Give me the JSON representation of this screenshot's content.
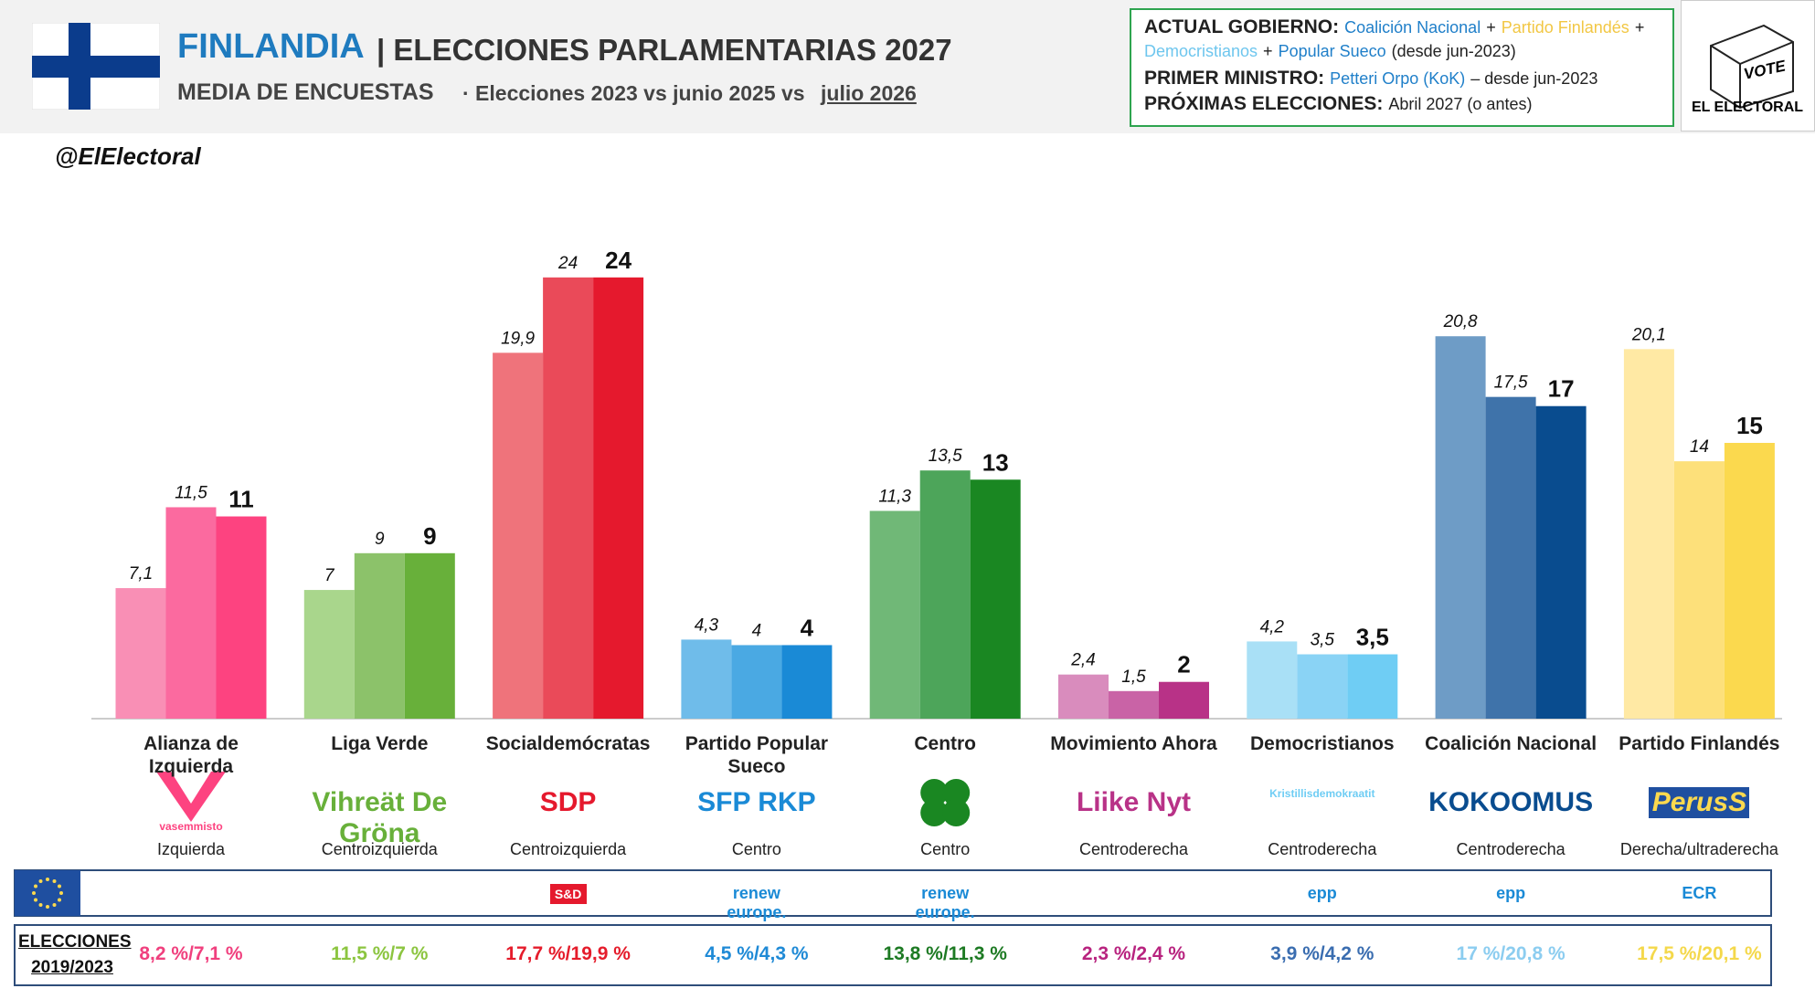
{
  "header": {
    "country": "FINLANDIA",
    "title": "| ELECCIONES PARLAMENTARIAS 2027",
    "subtitle": "MEDIA DE ENCUESTAS",
    "subtitle_detail": "· Elecciones 2023 vs junio 2025 vs",
    "subtitle_highlight": "julio 2026",
    "handle": "@ElElectoral"
  },
  "gov_box": {
    "lines": [
      [
        {
          "text": "ACTUAL GOBIERNO:",
          "bold": true
        },
        {
          "text": "Coalición Nacional",
          "color": "#1f7fc9"
        },
        {
          "text": "+"
        },
        {
          "text": "Partido Finlandés",
          "color": "#f2c744"
        },
        {
          "text": "+"
        }
      ],
      [
        {
          "text": "Democristianos",
          "color": "#6ec6ee"
        },
        {
          "text": "+"
        },
        {
          "text": "Popular Sueco",
          "color": "#1f7fc9"
        },
        {
          "text": "(desde jun-2023)"
        }
      ],
      [
        {
          "text": "PRIMER MINISTRO:",
          "bold": true
        },
        {
          "text": "Petteri Orpo (KoK)",
          "color": "#1f7fc9"
        },
        {
          "text": "– desde jun-2023"
        }
      ],
      [
        {
          "text": "PRÓXIMAS ELECCIONES:",
          "bold": true
        },
        {
          "text": "Abril 2027 (o antes)"
        }
      ]
    ]
  },
  "logo": {
    "vote": "VOTE",
    "brand": "EL ELECTORAL"
  },
  "chart_data": {
    "type": "bar",
    "categories": [
      "Alianza de Izquierda",
      "Liga Verde",
      "Socialdemócratas",
      "Partido Popular Sueco",
      "Centro",
      "Movimiento Ahora",
      "Democristianos",
      "Coalición Nacional",
      "Partido Finlandés"
    ],
    "ylim": [
      0,
      30
    ],
    "series": [
      {
        "values": [
          7.1,
          7,
          19.9,
          4.3,
          11.3,
          2.4,
          4.2,
          20.8,
          20.1
        ],
        "value_labels": [
          "7,1",
          "7",
          "19,9",
          "4,3",
          "11,3",
          "2,4",
          "4,2",
          "20,8",
          "20,1"
        ],
        "colors": [
          "#f98fb5",
          "#a9d68c",
          "#ef737b",
          "#6fbcea",
          "#70b877",
          "#d98cbd",
          "#a9e0f6",
          "#6e9cc6",
          "#ffe9a4"
        ]
      },
      {
        "values": [
          11.5,
          9,
          24,
          4,
          13.5,
          1.5,
          3.5,
          17.5,
          14
        ],
        "value_labels": [
          "11,5",
          "9",
          "24",
          "4",
          "13,5",
          "1,5",
          "3,5",
          "17,5",
          "14"
        ],
        "colors": [
          "#fb6a9f",
          "#8cc26a",
          "#ea4a59",
          "#4aa9e3",
          "#4da55a",
          "#c963a6",
          "#8ad3f5",
          "#3f73aa",
          "#fde07a"
        ]
      },
      {
        "values": [
          11,
          9,
          24,
          4,
          13,
          2,
          3.5,
          17,
          15
        ],
        "value_labels": [
          "11",
          "9",
          "24",
          "4",
          "13",
          "2",
          "3,5",
          "17",
          "15"
        ],
        "colors": [
          "#fd4380",
          "#68b03a",
          "#e5192d",
          "#1a8ad6",
          "#1a8722",
          "#b83287",
          "#6fcdf4",
          "#094c8f",
          "#fbd94e"
        ]
      }
    ]
  },
  "parties": [
    {
      "logo": "vasemmisto",
      "ideology": "Izquierda",
      "eu_group": null,
      "result": "8,2 %/7,1 %",
      "result_color": "#f0407e"
    },
    {
      "logo": "Vihreät De Gröna",
      "ideology": "Centroizquierda",
      "eu_group": null,
      "result": "11,5 %/7 %",
      "result_color": "#8cc540"
    },
    {
      "logo": "SDP",
      "ideology": "Centroizquierda",
      "eu_group": "S&D",
      "result": "17,7 %/19,9 %",
      "result_color": "#e51c2b"
    },
    {
      "logo": "SFP RKP",
      "ideology": "Centro",
      "eu_group": "renew europe.",
      "result": "4,5 %/4,3 %",
      "result_color": "#1f8ad6"
    },
    {
      "logo": null,
      "ideology": "Centro",
      "eu_group": "renew europe.",
      "result": "13,8 %/11,3 %",
      "result_color": "#1d7a23"
    },
    {
      "logo": "Liike Nyt",
      "ideology": "Centroderecha",
      "eu_group": null,
      "result": "2,3 %/2,4 %",
      "result_color": "#b8237f"
    },
    {
      "logo": "Kristillisdemokraatit",
      "ideology": "Centroderecha",
      "eu_group": "epp",
      "result": "3,9 %/4,2 %",
      "result_color": "#3a6db0"
    },
    {
      "logo": "KOKOOMUS",
      "ideology": "Centroderecha",
      "eu_group": "epp",
      "result": "17 %/20,8 %",
      "result_color": "#8ccdf0"
    },
    {
      "logo": "PerusS",
      "ideology": "Derecha/ultraderecha",
      "eu_group": "ECR",
      "result": "17,5 %/20,1 %",
      "result_color": "#f4d84b"
    }
  ],
  "footer": {
    "label": "ELECCIONES 2019/2023"
  }
}
